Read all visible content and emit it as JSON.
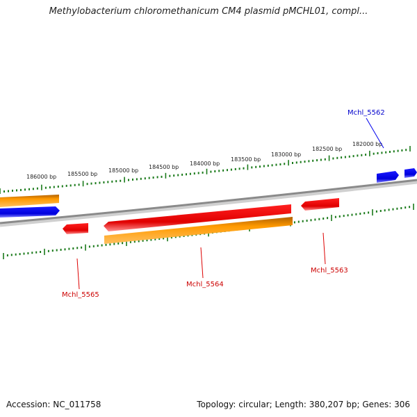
{
  "title": "Methylobacterium chloromethanicum CM4 plasmid pMCHL01, compl...",
  "footer": {
    "accession": "Accession: NC_011758",
    "summary": "Topology: circular; Length: 380,207 bp; Genes: 306"
  },
  "ticks": [
    "186000 bp",
    "185500 bp",
    "185000 bp",
    "184500 bp",
    "184000 bp",
    "183500 bp",
    "183000 bp",
    "182500 bp",
    "182000 bp"
  ],
  "gene_labels": {
    "g5562": "Mchl_5562",
    "g5563": "Mchl_5563",
    "g5564": "Mchl_5564",
    "g5565": "Mchl_5565"
  },
  "colors": {
    "cds_forward": "#0000ee",
    "cds_reverse": "#ee0000",
    "gene_bar": "#ff9900",
    "backbone": "#888888",
    "ticks": "#1a7a1a"
  }
}
